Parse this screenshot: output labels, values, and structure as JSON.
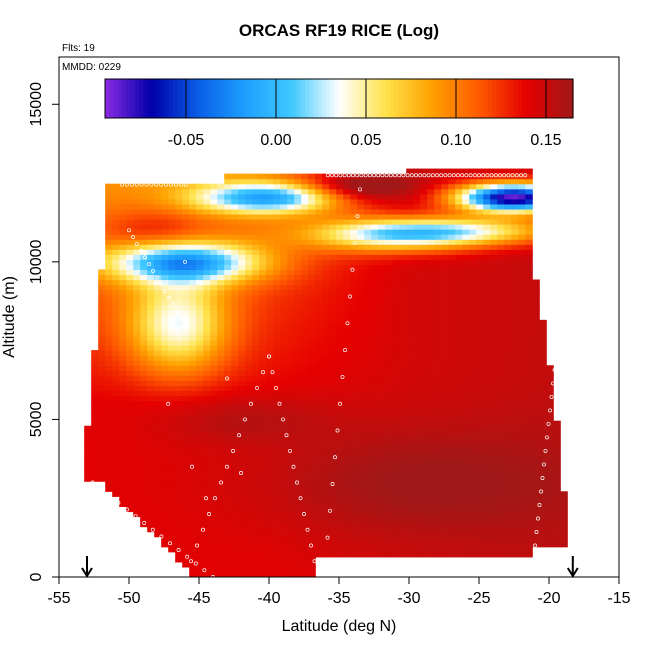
{
  "chart_data": {
    "type": "heatmap",
    "title": "ORCAS RF19 RICE (Log)",
    "annotations": {
      "flights": "Flts: 19",
      "date": "MMDD: 0229"
    },
    "xlabel": "Latitude (deg N)",
    "ylabel": "Altitude (m)",
    "xlim": [
      -55,
      -15
    ],
    "ylim": [
      0,
      16500
    ],
    "x_ticks": [
      -55,
      -50,
      -45,
      -40,
      -35,
      -30,
      -25,
      -20,
      -15
    ],
    "x_tick_labels": [
      "-55",
      "-50",
      "-45",
      "-40",
      "-35",
      "-30",
      "-25",
      "-20",
      "-15"
    ],
    "y_ticks": [
      0,
      5000,
      10000,
      15000
    ],
    "y_tick_labels": [
      "0",
      "5000",
      "10000",
      "15000"
    ],
    "colorbar": {
      "range": [
        -0.095,
        0.165
      ],
      "ticks": [
        -0.05,
        0.0,
        0.05,
        0.1,
        0.15
      ],
      "tick_labels": [
        "-0.05",
        "0.00",
        "0.05",
        "0.10",
        "0.15"
      ],
      "colors": [
        "#8a2be2",
        "#0000aa",
        "#0a5ee6",
        "#1ea0ff",
        "#40c8ff",
        "#ffffff",
        "#ffe24a",
        "#ffa000",
        "#ff5a00",
        "#e60000",
        "#a01818"
      ]
    },
    "field": {
      "description": "RICE (log) value vs latitude and altitude",
      "lat_range": [
        -53,
        -18.5
      ],
      "alt_range": [
        0,
        13000
      ],
      "features": [
        {
          "kind": "low",
          "lat": -46,
          "alt": 10000,
          "value": -0.04
        },
        {
          "kind": "low",
          "lat": -22.5,
          "alt": 12050,
          "value": -0.09
        },
        {
          "kind": "low",
          "lat": -40,
          "alt": 12050,
          "value": 0.0
        },
        {
          "kind": "high",
          "lat": -34,
          "alt": 12400,
          "value": 0.16
        },
        {
          "kind": "high",
          "lat": -30,
          "alt": 3000,
          "value": 0.155
        }
      ]
    },
    "arrows_at_lat": [
      -53,
      -18.3
    ]
  }
}
